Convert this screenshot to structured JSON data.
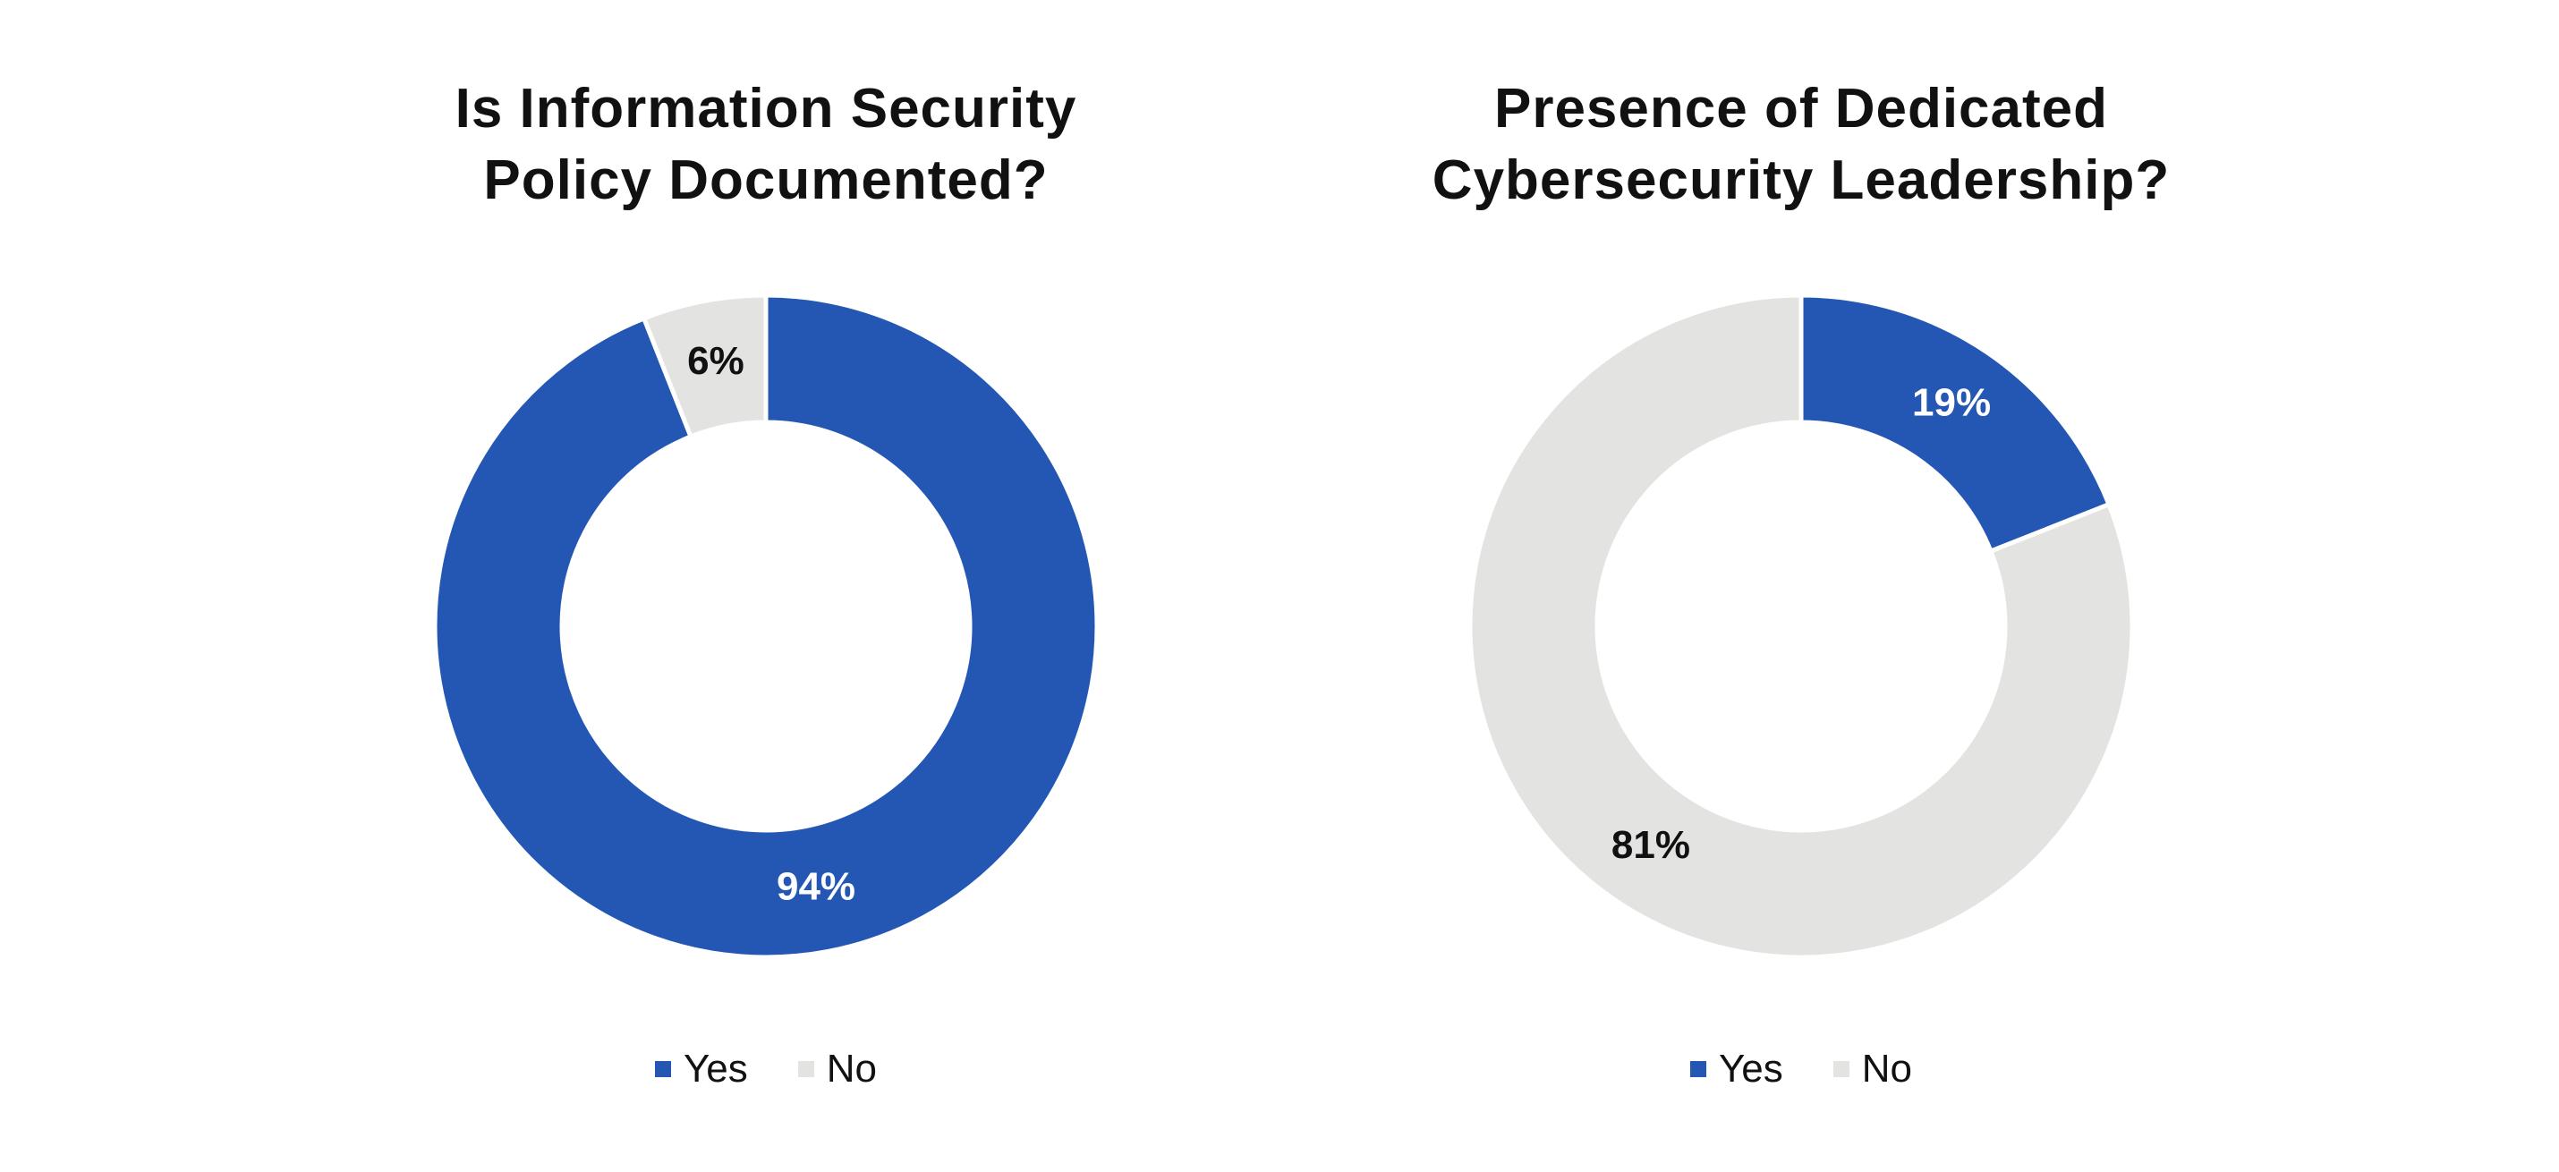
{
  "colors": {
    "yes": "#2457B3",
    "no": "#E3E3E2",
    "label_on_yes": "#ffffff",
    "label_on_no": "#111111"
  },
  "chart_data": [
    {
      "type": "pie",
      "donut": true,
      "title_lines": [
        "Is Information Security",
        "Policy Documented?"
      ],
      "categories": [
        "Yes",
        "No"
      ],
      "values": [
        94,
        6
      ],
      "labels": [
        "94%",
        "6%"
      ],
      "legend": {
        "position": "bottom",
        "entries": [
          "Yes",
          "No"
        ]
      }
    },
    {
      "type": "pie",
      "donut": true,
      "title_lines": [
        "Presence of Dedicated",
        "Cybersecurity Leadership?"
      ],
      "categories": [
        "Yes",
        "No"
      ],
      "values": [
        19,
        81
      ],
      "labels": [
        "19%",
        "81%"
      ],
      "legend": {
        "position": "bottom",
        "entries": [
          "Yes",
          "No"
        ]
      }
    }
  ]
}
